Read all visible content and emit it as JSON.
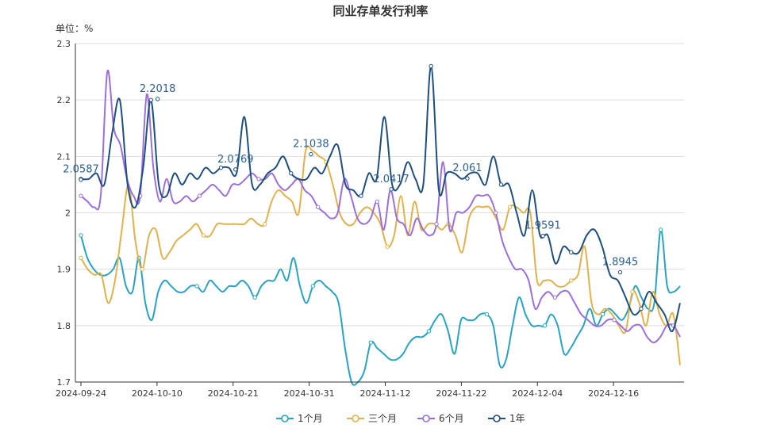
{
  "chart_data": {
    "type": "line",
    "title": "同业存单发行利率",
    "unit_label": "单位：%",
    "ylim": [
      1.7,
      2.3
    ],
    "yticks": [
      "1.7",
      "1.8",
      "1.9",
      "2",
      "2.1",
      "2.2",
      "2.3"
    ],
    "xticks": [
      "2024-09-24",
      "2024-10-10",
      "2024-10-21",
      "2024-10-31",
      "2024-11-12",
      "2024-11-22",
      "2024-12-04",
      "2024-12-16"
    ],
    "legend_position": "bottom",
    "grid": true,
    "series": [
      {
        "name": "1个月",
        "color": "#2aa2c2",
        "values": [
          1.96,
          1.92,
          1.9,
          1.89,
          1.89,
          1.9,
          1.92,
          1.87,
          1.86,
          1.92,
          1.84,
          1.81,
          1.86,
          1.88,
          1.87,
          1.86,
          1.86,
          1.87,
          1.87,
          1.86,
          1.88,
          1.87,
          1.86,
          1.87,
          1.87,
          1.88,
          1.87,
          1.85,
          1.87,
          1.88,
          1.88,
          1.9,
          1.88,
          1.92,
          1.87,
          1.84,
          1.87,
          1.88,
          1.87,
          1.86,
          1.84,
          1.76,
          1.7,
          1.7,
          1.72,
          1.77,
          1.76,
          1.75,
          1.74,
          1.74,
          1.75,
          1.77,
          1.78,
          1.78,
          1.79,
          1.81,
          1.82,
          1.79,
          1.75,
          1.81,
          1.81,
          1.81,
          1.82,
          1.82,
          1.8,
          1.73,
          1.74,
          1.8,
          1.85,
          1.82,
          1.8,
          1.8,
          1.8,
          1.82,
          1.8,
          1.75,
          1.76,
          1.78,
          1.8,
          1.83,
          1.8,
          1.82,
          1.83,
          1.82,
          1.81,
          1.83,
          1.87,
          1.85,
          1.83,
          1.84,
          1.97,
          1.87,
          1.86,
          1.87
        ]
      },
      {
        "name": "三个月",
        "color": "#e0b24d",
        "values": [
          1.92,
          1.9,
          1.89,
          1.89,
          1.84,
          1.88,
          1.97,
          2.05,
          1.95,
          1.9,
          1.96,
          1.97,
          1.92,
          1.93,
          1.95,
          1.96,
          1.97,
          1.98,
          1.96,
          1.96,
          1.98,
          1.98,
          1.98,
          1.98,
          1.98,
          1.99,
          1.98,
          1.98,
          2.02,
          2.04,
          2.03,
          2.02,
          2.0,
          2.11,
          2.11,
          2.1,
          2.09,
          2.05,
          2.0,
          1.98,
          1.98,
          2.0,
          2.01,
          2.0,
          1.98,
          1.94,
          1.96,
          2.03,
          1.96,
          2.02,
          1.97,
          1.98,
          1.98,
          1.97,
          1.98,
          1.96,
          1.93,
          1.99,
          2.01,
          2.01,
          2.01,
          1.99,
          1.97,
          2.01,
          2.01,
          2.0,
          2.0,
          1.88,
          1.88,
          1.88,
          1.87,
          1.87,
          1.88,
          1.89,
          1.94,
          1.84,
          1.82,
          1.83,
          1.82,
          1.8,
          1.79,
          1.86,
          1.84,
          1.8,
          1.86,
          1.82,
          1.8,
          1.82,
          1.73
        ]
      },
      {
        "name": "6个月",
        "color": "#9b6fdc",
        "values": [
          2.03,
          2.02,
          2.01,
          2.03,
          2.25,
          2.15,
          2.12,
          2.06,
          2.03,
          2.03,
          2.21,
          2.08,
          2.02,
          2.06,
          2.02,
          2.02,
          2.03,
          2.02,
          2.03,
          2.04,
          2.05,
          2.04,
          2.03,
          2.05,
          2.05,
          2.06,
          2.07,
          2.06,
          2.06,
          2.07,
          2.05,
          2.04,
          2.05,
          2.06,
          2.04,
          2.03,
          2.01,
          2.0,
          1.99,
          2.0,
          2.06,
          2.03,
          1.99,
          1.98,
          1.99,
          2.02,
          1.97,
          2.04,
          1.99,
          1.98,
          1.96,
          1.99,
          1.97,
          1.96,
          1.98,
          2.09,
          1.97,
          2.0,
          2.0,
          2.01,
          2.03,
          2.03,
          2.03,
          2.0,
          1.95,
          1.92,
          1.9,
          1.9,
          1.88,
          1.83,
          1.85,
          1.86,
          1.85,
          1.86,
          1.86,
          1.84,
          1.82,
          1.81,
          1.8,
          1.8,
          1.81,
          1.81,
          1.8,
          1.79,
          1.8,
          1.8,
          1.78,
          1.77,
          1.78,
          1.8,
          1.8,
          1.78
        ]
      },
      {
        "name": "1年",
        "color": "#1f4f7f",
        "values": [
          2.06,
          2.06,
          2.07,
          2.05,
          2.14,
          2.2,
          2.05,
          2.01,
          2.08,
          2.2,
          2.05,
          2.03,
          2.07,
          2.05,
          2.07,
          2.06,
          2.08,
          2.07,
          2.08,
          2.08,
          2.07,
          2.17,
          2.05,
          2.05,
          2.07,
          2.08,
          2.1,
          2.07,
          2.06,
          2.06,
          2.08,
          2.07,
          2.1,
          2.12,
          2.05,
          2.04,
          2.03,
          2.07,
          2.06,
          2.17,
          2.05,
          2.05,
          2.09,
          2.06,
          2.05,
          2.26,
          2.04,
          2.07,
          2.07,
          2.06,
          2.07,
          2.07,
          2.05,
          2.1,
          2.05,
          2.05,
          2.0,
          1.96,
          2.04,
          1.96,
          1.96,
          1.91,
          1.94,
          1.93,
          1.93,
          1.96,
          1.97,
          1.94,
          1.89,
          1.88,
          1.85,
          1.82,
          1.83,
          1.86,
          1.84,
          1.82,
          1.79,
          1.84
        ]
      }
    ],
    "annotations": [
      {
        "text": "2.0587",
        "series": 3,
        "x_frac": 0.0,
        "value": 2.0587
      },
      {
        "text": "2.2018",
        "series": 3,
        "x_frac": 0.128,
        "value": 2.2018
      },
      {
        "text": "2.0769",
        "series": 3,
        "x_frac": 0.258,
        "value": 2.0769
      },
      {
        "text": "2.1038",
        "series": 3,
        "x_frac": 0.384,
        "value": 2.1038
      },
      {
        "text": "2.0417",
        "series": 3,
        "x_frac": 0.518,
        "value": 2.0417
      },
      {
        "text": "2.061",
        "series": 3,
        "x_frac": 0.645,
        "value": 2.061
      },
      {
        "text": "1.9591",
        "series": 3,
        "x_frac": 0.771,
        "value": 1.9591
      },
      {
        "text": "1.8945",
        "series": 3,
        "x_frac": 0.9,
        "value": 1.8945
      }
    ]
  }
}
